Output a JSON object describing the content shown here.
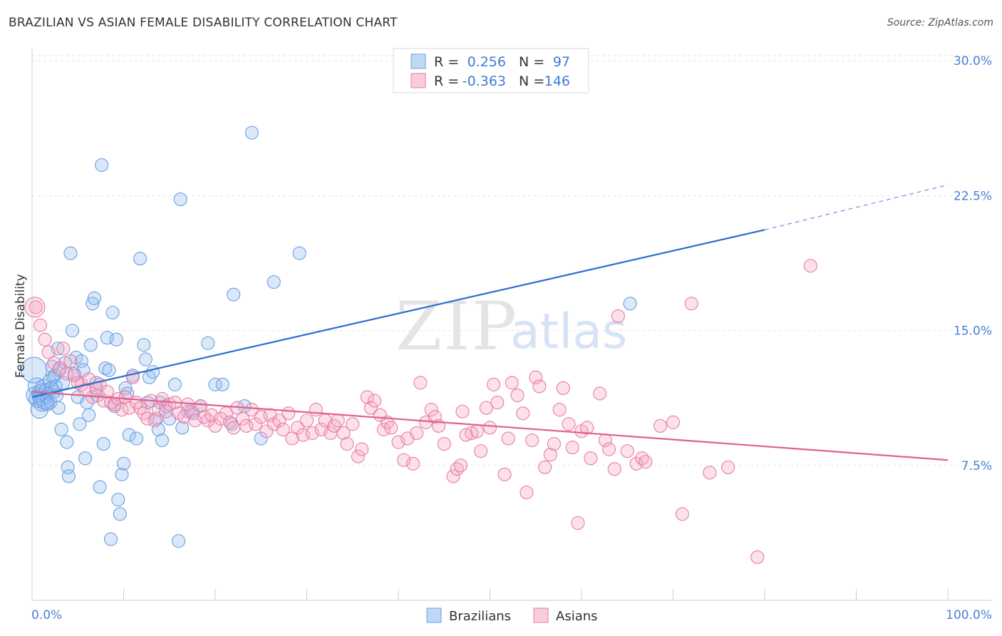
{
  "title": "BRAZILIAN VS ASIAN FEMALE DISABILITY CORRELATION CHART",
  "source": "Source: ZipAtlas.com",
  "watermark": {
    "zip": "ZIP",
    "atlas": "atlas"
  },
  "chart_data": {
    "type": "scatter",
    "ylabel": "Female Disability",
    "xlim": [
      0,
      100
    ],
    "ylim": [
      0,
      31
    ],
    "x_tick_labels": [
      "0.0%",
      "100.0%"
    ],
    "y_ticks": [
      7.5,
      15.0,
      22.5,
      30.0
    ],
    "y_tick_labels": [
      "7.5%",
      "15.0%",
      "22.5%",
      "30.0%"
    ],
    "grid": true,
    "legend_top": {
      "rows": [
        {
          "r_label": "R =",
          "r_value": "0.256",
          "n_label": "N =",
          "n_value": "97"
        },
        {
          "r_label": "R =",
          "r_value": "-0.363",
          "n_label": "N =",
          "n_value": "146"
        }
      ]
    },
    "series": [
      {
        "name": "Brazilians",
        "color": "#6a9fe0",
        "fill": "rgba(150,190,240,0.35)",
        "line_color": "#2a6dcf",
        "trend": {
          "x0": 0,
          "y0": 11.3,
          "x1": 80,
          "y1": 20.6,
          "dash_to_x": 100,
          "dash_to_y": 23.1
        },
        "points": [
          [
            0.3,
            11.4
          ],
          [
            0.5,
            11.9
          ],
          [
            0.6,
            11.2
          ],
          [
            0.8,
            10.6
          ],
          [
            0.9,
            11.5
          ],
          [
            1.0,
            11.3
          ],
          [
            1.1,
            11.0
          ],
          [
            1.2,
            11.6
          ],
          [
            1.3,
            11.8
          ],
          [
            1.4,
            11.1
          ],
          [
            1.5,
            11.7
          ],
          [
            1.6,
            11.3
          ],
          [
            1.7,
            10.9
          ],
          [
            1.8,
            11.5
          ],
          [
            1.9,
            12.2
          ],
          [
            2.0,
            11.0
          ],
          [
            2.1,
            11.8
          ],
          [
            2.2,
            13.0
          ],
          [
            2.3,
            12.4
          ],
          [
            2.4,
            11.6
          ],
          [
            2.5,
            12.5
          ],
          [
            2.6,
            11.9
          ],
          [
            2.7,
            11.4
          ],
          [
            2.8,
            14.0
          ],
          [
            2.9,
            10.7
          ],
          [
            3.0,
            12.8
          ],
          [
            3.2,
            9.5
          ],
          [
            3.4,
            12.1
          ],
          [
            3.6,
            13.2
          ],
          [
            3.8,
            8.8
          ],
          [
            3.9,
            7.4
          ],
          [
            4.0,
            6.9
          ],
          [
            4.2,
            19.3
          ],
          [
            4.4,
            15.0
          ],
          [
            4.6,
            12.6
          ],
          [
            4.8,
            13.5
          ],
          [
            5.0,
            11.3
          ],
          [
            5.2,
            9.8
          ],
          [
            5.4,
            13.3
          ],
          [
            5.6,
            12.8
          ],
          [
            5.8,
            7.9
          ],
          [
            6.0,
            11.0
          ],
          [
            6.2,
            10.3
          ],
          [
            6.4,
            14.2
          ],
          [
            6.6,
            16.5
          ],
          [
            6.8,
            16.8
          ],
          [
            7.0,
            12.1
          ],
          [
            7.2,
            11.4
          ],
          [
            7.4,
            6.3
          ],
          [
            7.6,
            24.2
          ],
          [
            7.8,
            8.7
          ],
          [
            8.0,
            12.9
          ],
          [
            8.2,
            14.6
          ],
          [
            8.4,
            12.8
          ],
          [
            8.6,
            3.4
          ],
          [
            8.8,
            16.0
          ],
          [
            9.0,
            10.8
          ],
          [
            9.2,
            14.5
          ],
          [
            9.4,
            5.6
          ],
          [
            9.6,
            4.8
          ],
          [
            9.8,
            7.0
          ],
          [
            10.0,
            7.6
          ],
          [
            10.2,
            11.8
          ],
          [
            10.4,
            11.5
          ],
          [
            10.6,
            9.2
          ],
          [
            11.0,
            12.5
          ],
          [
            11.4,
            9.0
          ],
          [
            11.8,
            19.0
          ],
          [
            12.2,
            14.2
          ],
          [
            12.4,
            13.4
          ],
          [
            12.6,
            11.0
          ],
          [
            12.8,
            12.4
          ],
          [
            13.2,
            12.7
          ],
          [
            13.6,
            10.1
          ],
          [
            13.8,
            9.5
          ],
          [
            14.0,
            11.0
          ],
          [
            14.2,
            8.9
          ],
          [
            14.6,
            10.8
          ],
          [
            15.0,
            10.1
          ],
          [
            15.6,
            12.0
          ],
          [
            16.0,
            3.3
          ],
          [
            16.2,
            22.3
          ],
          [
            16.4,
            9.6
          ],
          [
            17.0,
            10.5
          ],
          [
            17.6,
            10.4
          ],
          [
            18.4,
            10.8
          ],
          [
            19.2,
            14.3
          ],
          [
            20.0,
            12.0
          ],
          [
            20.8,
            12.0
          ],
          [
            21.8,
            9.8
          ],
          [
            22.0,
            17.0
          ],
          [
            23.2,
            10.8
          ],
          [
            24.0,
            26.0
          ],
          [
            25.0,
            9.0
          ],
          [
            26.4,
            17.7
          ],
          [
            29.2,
            19.3
          ],
          [
            65.3,
            16.5
          ]
        ]
      },
      {
        "name": "Asians",
        "color": "#e87ca3",
        "fill": "rgba(245,170,195,0.35)",
        "line_color": "#e0608f",
        "trend": {
          "x0": 0,
          "y0": 11.6,
          "x1": 100,
          "y1": 7.8
        },
        "points": [
          [
            0.4,
            16.3
          ],
          [
            0.9,
            15.3
          ],
          [
            1.4,
            14.5
          ],
          [
            1.8,
            13.8
          ],
          [
            2.4,
            13.2
          ],
          [
            3.0,
            12.9
          ],
          [
            3.4,
            14.0
          ],
          [
            3.8,
            12.6
          ],
          [
            4.2,
            13.3
          ],
          [
            4.6,
            12.5
          ],
          [
            5.0,
            12.1
          ],
          [
            5.4,
            12.0
          ],
          [
            5.8,
            11.7
          ],
          [
            6.2,
            12.3
          ],
          [
            6.6,
            11.3
          ],
          [
            7.0,
            11.8
          ],
          [
            7.4,
            12.0
          ],
          [
            7.8,
            11.1
          ],
          [
            8.2,
            11.6
          ],
          [
            8.6,
            11.0
          ],
          [
            9.0,
            10.9
          ],
          [
            9.4,
            11.2
          ],
          [
            9.8,
            10.6
          ],
          [
            10.2,
            11.3
          ],
          [
            10.6,
            10.7
          ],
          [
            11.0,
            12.4
          ],
          [
            11.4,
            11.0
          ],
          [
            11.8,
            10.7
          ],
          [
            12.2,
            10.4
          ],
          [
            12.6,
            10.1
          ],
          [
            13.0,
            11.1
          ],
          [
            13.4,
            10.0
          ],
          [
            13.8,
            10.6
          ],
          [
            14.2,
            11.2
          ],
          [
            14.6,
            10.5
          ],
          [
            15.0,
            10.9
          ],
          [
            15.6,
            11.0
          ],
          [
            16.0,
            10.4
          ],
          [
            16.6,
            10.2
          ],
          [
            17.0,
            10.9
          ],
          [
            17.4,
            10.5
          ],
          [
            17.8,
            10.0
          ],
          [
            18.4,
            10.8
          ],
          [
            18.8,
            10.2
          ],
          [
            19.2,
            10.0
          ],
          [
            19.6,
            10.3
          ],
          [
            20.0,
            9.7
          ],
          [
            20.6,
            10.1
          ],
          [
            21.2,
            10.4
          ],
          [
            21.6,
            9.9
          ],
          [
            22.0,
            9.6
          ],
          [
            22.4,
            10.7
          ],
          [
            23.0,
            10.1
          ],
          [
            23.4,
            9.7
          ],
          [
            24.0,
            10.6
          ],
          [
            24.4,
            9.8
          ],
          [
            25.0,
            10.2
          ],
          [
            25.6,
            9.4
          ],
          [
            26.0,
            10.3
          ],
          [
            26.4,
            9.8
          ],
          [
            27.0,
            10.0
          ],
          [
            27.4,
            9.5
          ],
          [
            28.0,
            10.4
          ],
          [
            28.4,
            9.0
          ],
          [
            29.0,
            9.6
          ],
          [
            29.6,
            9.2
          ],
          [
            30.0,
            10.0
          ],
          [
            30.6,
            9.3
          ],
          [
            31.0,
            10.6
          ],
          [
            31.6,
            9.5
          ],
          [
            32.0,
            10.0
          ],
          [
            32.6,
            9.3
          ],
          [
            33.0,
            9.7
          ],
          [
            33.4,
            10.0
          ],
          [
            34.0,
            9.3
          ],
          [
            34.4,
            8.7
          ],
          [
            35.0,
            9.8
          ],
          [
            35.6,
            8.0
          ],
          [
            36.0,
            8.4
          ],
          [
            36.6,
            11.3
          ],
          [
            37.0,
            10.7
          ],
          [
            37.4,
            11.1
          ],
          [
            38.0,
            10.3
          ],
          [
            38.4,
            9.5
          ],
          [
            38.8,
            9.9
          ],
          [
            39.2,
            9.6
          ],
          [
            40.0,
            8.8
          ],
          [
            40.6,
            7.8
          ],
          [
            41.0,
            9.0
          ],
          [
            41.6,
            7.6
          ],
          [
            42.0,
            9.3
          ],
          [
            42.4,
            12.1
          ],
          [
            43.0,
            9.9
          ],
          [
            43.6,
            10.6
          ],
          [
            44.0,
            10.2
          ],
          [
            44.4,
            9.7
          ],
          [
            45.0,
            8.7
          ],
          [
            46.0,
            6.9
          ],
          [
            46.4,
            7.3
          ],
          [
            46.8,
            7.5
          ],
          [
            47.0,
            10.5
          ],
          [
            47.4,
            9.2
          ],
          [
            48.0,
            9.3
          ],
          [
            48.6,
            9.4
          ],
          [
            49.0,
            8.3
          ],
          [
            49.6,
            10.7
          ],
          [
            50.0,
            9.6
          ],
          [
            50.4,
            12.0
          ],
          [
            50.8,
            11.0
          ],
          [
            51.6,
            7.0
          ],
          [
            52.0,
            9.0
          ],
          [
            52.4,
            12.1
          ],
          [
            53.0,
            11.4
          ],
          [
            53.6,
            10.4
          ],
          [
            54.0,
            6.0
          ],
          [
            54.6,
            8.9
          ],
          [
            55.0,
            12.4
          ],
          [
            55.4,
            11.9
          ],
          [
            56.0,
            7.4
          ],
          [
            56.6,
            8.1
          ],
          [
            57.0,
            8.7
          ],
          [
            57.6,
            10.6
          ],
          [
            58.0,
            11.8
          ],
          [
            58.6,
            9.8
          ],
          [
            59.0,
            8.5
          ],
          [
            59.6,
            4.3
          ],
          [
            60.0,
            9.4
          ],
          [
            60.6,
            9.6
          ],
          [
            61.0,
            7.9
          ],
          [
            62.0,
            11.5
          ],
          [
            62.6,
            8.9
          ],
          [
            63.0,
            8.4
          ],
          [
            63.6,
            7.3
          ],
          [
            64.0,
            15.8
          ],
          [
            65.0,
            8.3
          ],
          [
            66.0,
            7.6
          ],
          [
            66.6,
            7.9
          ],
          [
            67.0,
            7.7
          ],
          [
            68.6,
            9.7
          ],
          [
            70.0,
            9.9
          ],
          [
            71.0,
            4.8
          ],
          [
            72.0,
            16.5
          ],
          [
            74.0,
            7.1
          ],
          [
            79.2,
            2.4
          ],
          [
            85.0,
            18.6
          ],
          [
            76.0,
            7.4
          ]
        ]
      }
    ]
  },
  "bottom_legend": [
    "Brazilians",
    "Asians"
  ]
}
